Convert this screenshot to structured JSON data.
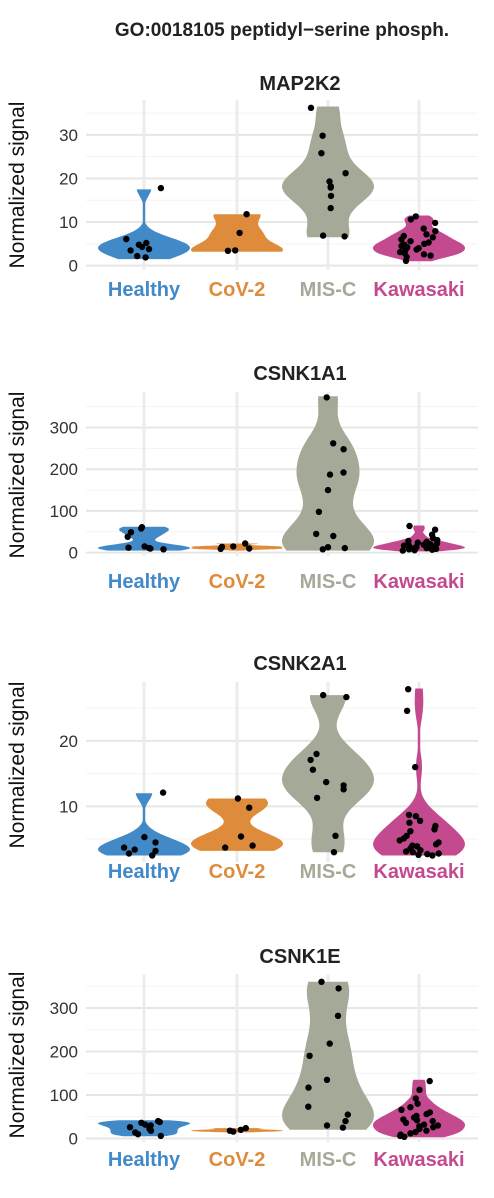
{
  "suptitle": "GO:0018105 peptidyl−serine phosph.",
  "groups": [
    "Healthy",
    "CoV-2",
    "MIS-C",
    "Kawasaki"
  ],
  "group_colors": [
    "#4189c7",
    "#de8c3c",
    "#a5aa98",
    "#c44a8f"
  ],
  "chart_data": [
    {
      "type": "violin",
      "title": "MAP2K2",
      "ylabel": "Normalized signal",
      "ylim": [
        -1,
        38
      ],
      "yticks": [
        0,
        10,
        20,
        30
      ],
      "series": [
        {
          "group": "Healthy",
          "range": [
            1.5,
            17.5
          ],
          "points": [
            17.8,
            6.1,
            5.2,
            4.8,
            4.3,
            3.8,
            3.5,
            2.2,
            1.9
          ]
        },
        {
          "group": "CoV-2",
          "range": [
            3.2,
            11.8
          ],
          "points": [
            11.8,
            7.5,
            3.5,
            3.4
          ]
        },
        {
          "group": "MIS-C",
          "range": [
            6.5,
            36.5
          ],
          "points": [
            36.2,
            29.8,
            25.8,
            21.2,
            19.3,
            18.2,
            17.9,
            16.0,
            13.2,
            6.9,
            6.7
          ]
        },
        {
          "group": "Kawasaki",
          "range": [
            1.0,
            11.5
          ],
          "points": [
            11.3,
            10.6,
            9.8,
            8.5,
            7.9,
            7.2,
            6.8,
            6.5,
            6.0,
            5.6,
            5.3,
            5.0,
            4.8,
            4.5,
            4.2,
            4.0,
            3.7,
            3.4,
            3.1,
            2.9,
            2.6,
            2.3,
            2.0,
            1.1
          ]
        }
      ]
    },
    {
      "type": "violin",
      "title": "CSNK1A1",
      "ylabel": "Normalized signal",
      "ylim": [
        -8,
        385
      ],
      "yticks": [
        0,
        100,
        200,
        300
      ],
      "series": [
        {
          "group": "Healthy",
          "range": [
            5,
            62
          ],
          "points": [
            61,
            58,
            49,
            38,
            15,
            12,
            11,
            10,
            8
          ]
        },
        {
          "group": "CoV-2",
          "range": [
            5,
            22
          ],
          "points": [
            22,
            15,
            14,
            10,
            9
          ]
        },
        {
          "group": "MIS-C",
          "range": [
            5,
            375
          ],
          "points": [
            372,
            262,
            248,
            192,
            187,
            150,
            98,
            45,
            40,
            13,
            11,
            8
          ]
        },
        {
          "group": "Kawasaki",
          "range": [
            3,
            65
          ],
          "points": [
            64,
            55,
            43,
            35,
            30,
            28,
            26,
            24,
            22,
            20,
            19,
            18,
            17,
            15,
            14,
            13,
            12,
            11,
            10,
            9,
            8,
            7,
            6,
            5
          ]
        }
      ]
    },
    {
      "type": "violin",
      "title": "CSNK2A1",
      "ylabel": "Normalized signal",
      "ylim": [
        1.5,
        29
      ],
      "yticks": [
        10,
        20
      ],
      "series": [
        {
          "group": "Healthy",
          "range": [
            2.5,
            12
          ],
          "points": [
            12.1,
            5.3,
            4.5,
            3.7,
            3.4,
            3.2,
            2.8,
            2.5
          ]
        },
        {
          "group": "CoV-2",
          "range": [
            3.2,
            11.2
          ],
          "points": [
            11.2,
            9.8,
            5.4,
            4.0,
            3.7
          ]
        },
        {
          "group": "MIS-C",
          "range": [
            3.0,
            27.0
          ],
          "points": [
            27.0,
            26.7,
            18.0,
            17.1,
            15.6,
            13.7,
            13.2,
            12.6,
            11.3,
            5.5,
            3.0
          ]
        },
        {
          "group": "Kawasaki",
          "range": [
            2.5,
            28.0
          ],
          "points": [
            27.9,
            24.6,
            16.0,
            8.7,
            8.5,
            7.8,
            7.5,
            7.0,
            6.5,
            6.2,
            5.5,
            5.1,
            4.8,
            4.5,
            4.2,
            4.0,
            3.9,
            3.6,
            3.3,
            3.1,
            3.0,
            2.8,
            2.7,
            2.6,
            2.5
          ]
        }
      ]
    },
    {
      "type": "violin",
      "title": "CSNK1E",
      "ylabel": "Normalized signal",
      "ylim": [
        -8,
        378
      ],
      "yticks": [
        0,
        100,
        200,
        300
      ],
      "series": [
        {
          "group": "Healthy",
          "range": [
            5,
            42
          ],
          "points": [
            40,
            38,
            36,
            32,
            30,
            26,
            22,
            18,
            14,
            10,
            6
          ]
        },
        {
          "group": "CoV-2",
          "range": [
            14,
            24
          ],
          "points": [
            24,
            20,
            18,
            16
          ]
        },
        {
          "group": "MIS-C",
          "range": [
            20,
            360
          ],
          "points": [
            360,
            345,
            282,
            218,
            190,
            135,
            117,
            73,
            55,
            40,
            30,
            25
          ]
        },
        {
          "group": "Kawasaki",
          "range": [
            3,
            135
          ],
          "points": [
            132,
            112,
            92,
            80,
            72,
            66,
            60,
            56,
            52,
            48,
            44,
            42,
            40,
            36,
            32,
            30,
            28,
            26,
            22,
            18,
            15,
            12,
            9,
            6,
            4
          ]
        }
      ]
    }
  ]
}
